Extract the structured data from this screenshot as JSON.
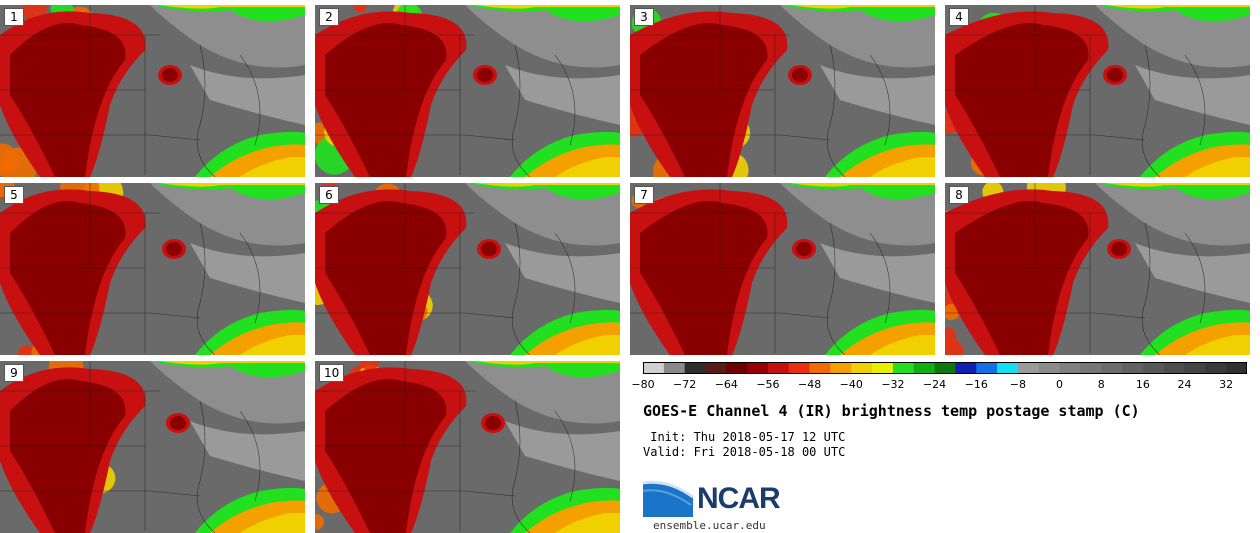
{
  "panels": [
    {
      "label": "1"
    },
    {
      "label": "2"
    },
    {
      "label": "3"
    },
    {
      "label": "4"
    },
    {
      "label": "5"
    },
    {
      "label": "6"
    },
    {
      "label": "7"
    },
    {
      "label": "8"
    },
    {
      "label": "9"
    },
    {
      "label": "10"
    }
  ],
  "colorbar": {
    "ticks": [
      "−80",
      "−72",
      "−64",
      "−56",
      "−48",
      "−40",
      "−32",
      "−24",
      "−16",
      "−8",
      "0",
      "8",
      "16",
      "24",
      "32"
    ],
    "colors": [
      "#d0d0d0",
      "#8a8a8a",
      "#2e2e2e",
      "#5a1a1a",
      "#6e0000",
      "#9a0000",
      "#c81010",
      "#e83010",
      "#f06c00",
      "#f4a000",
      "#f0d000",
      "#e8f000",
      "#20e020",
      "#10b010",
      "#0a7a0a",
      "#1020b0",
      "#1070e8",
      "#10e0f0",
      "#9a9a9a",
      "#8c8c8c",
      "#808080",
      "#767676",
      "#6c6c6c",
      "#626262",
      "#585858",
      "#4e4e4e",
      "#444444",
      "#3a3a3a",
      "#303030"
    ]
  },
  "title": "GOES-E Channel 4 (IR) brightness temp postage stamp (C)",
  "init": " Init: Thu 2018-05-17 12 UTC",
  "valid": "Valid: Fri 2018-05-18 00 UTC",
  "logo": {
    "text": "NCAR",
    "url": "ensemble.ucar.edu",
    "color": "#1a5ea8"
  }
}
